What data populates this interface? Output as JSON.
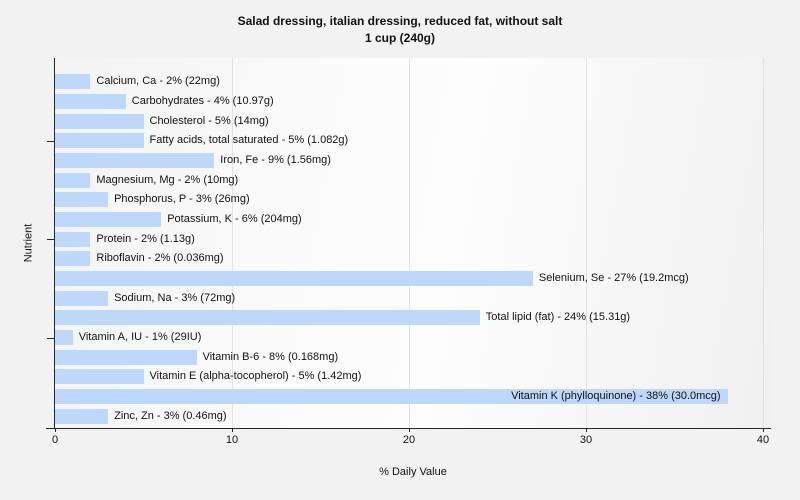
{
  "title": {
    "line1": "Salad dressing, italian dressing, reduced fat, without salt",
    "line2": "1 cup (240g)"
  },
  "chart_data": {
    "type": "bar",
    "orientation": "horizontal",
    "title": "Salad dressing, italian dressing, reduced fat, without salt",
    "subtitle": "1 cup (240g)",
    "xlabel": "% Daily Value",
    "ylabel": "Nutrient",
    "xlim": [
      0,
      40
    ],
    "x_ticks": [
      0,
      10,
      20,
      30,
      40
    ],
    "y_tick_rows": [
      3,
      8,
      13
    ],
    "grid": true,
    "legend": false,
    "bar_color": "#bdd8f8",
    "bars": [
      {
        "nutrient": "Calcium, Ca",
        "percent": 2,
        "amount": "22mg",
        "label": "Calcium, Ca - 2% (22mg)"
      },
      {
        "nutrient": "Carbohydrates",
        "percent": 4,
        "amount": "10.97g",
        "label": "Carbohydrates - 4% (10.97g)"
      },
      {
        "nutrient": "Cholesterol",
        "percent": 5,
        "amount": "14mg",
        "label": "Cholesterol - 5% (14mg)"
      },
      {
        "nutrient": "Fatty acids, total saturated",
        "percent": 5,
        "amount": "1.082g",
        "label": "Fatty acids, total saturated - 5% (1.082g)"
      },
      {
        "nutrient": "Iron, Fe",
        "percent": 9,
        "amount": "1.56mg",
        "label": "Iron, Fe - 9% (1.56mg)"
      },
      {
        "nutrient": "Magnesium, Mg",
        "percent": 2,
        "amount": "10mg",
        "label": "Magnesium, Mg - 2% (10mg)"
      },
      {
        "nutrient": "Phosphorus, P",
        "percent": 3,
        "amount": "26mg",
        "label": "Phosphorus, P - 3% (26mg)"
      },
      {
        "nutrient": "Potassium, K",
        "percent": 6,
        "amount": "204mg",
        "label": "Potassium, K - 6% (204mg)"
      },
      {
        "nutrient": "Protein",
        "percent": 2,
        "amount": "1.13g",
        "label": "Protein - 2% (1.13g)"
      },
      {
        "nutrient": "Riboflavin",
        "percent": 2,
        "amount": "0.036mg",
        "label": "Riboflavin - 2% (0.036mg)"
      },
      {
        "nutrient": "Selenium, Se",
        "percent": 27,
        "amount": "19.2mcg",
        "label": "Selenium, Se - 27% (19.2mcg)"
      },
      {
        "nutrient": "Sodium, Na",
        "percent": 3,
        "amount": "72mg",
        "label": "Sodium, Na - 3% (72mg)"
      },
      {
        "nutrient": "Total lipid (fat)",
        "percent": 24,
        "amount": "15.31g",
        "label": "Total lipid (fat) - 24% (15.31g)"
      },
      {
        "nutrient": "Vitamin A, IU",
        "percent": 1,
        "amount": "29IU",
        "label": "Vitamin A, IU - 1% (29IU)"
      },
      {
        "nutrient": "Vitamin B-6",
        "percent": 8,
        "amount": "0.168mg",
        "label": "Vitamin B-6 - 8% (0.168mg)"
      },
      {
        "nutrient": "Vitamin E (alpha-tocopherol)",
        "percent": 5,
        "amount": "1.42mg",
        "label": "Vitamin E (alpha-tocopherol) - 5% (1.42mg)"
      },
      {
        "nutrient": "Vitamin K (phylloquinone)",
        "percent": 38,
        "amount": "30.0mcg",
        "label": "Vitamin K (phylloquinone) - 38% (30.0mcg)"
      },
      {
        "nutrient": "Zinc, Zn",
        "percent": 3,
        "amount": "0.46mg",
        "label": "Zinc, Zn - 3% (0.46mg)"
      }
    ]
  }
}
